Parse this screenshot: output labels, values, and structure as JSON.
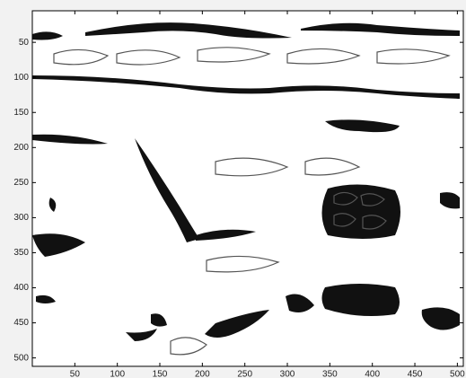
{
  "chart_data": {
    "type": "image",
    "xlim": [
      0,
      507
    ],
    "ylim": [
      5,
      512
    ],
    "y_reversed": true,
    "xticks": [
      50,
      100,
      150,
      200,
      250,
      300,
      350,
      400,
      450,
      500
    ],
    "yticks": [
      50,
      100,
      150,
      200,
      250,
      300,
      350,
      400,
      450,
      500
    ]
  }
}
